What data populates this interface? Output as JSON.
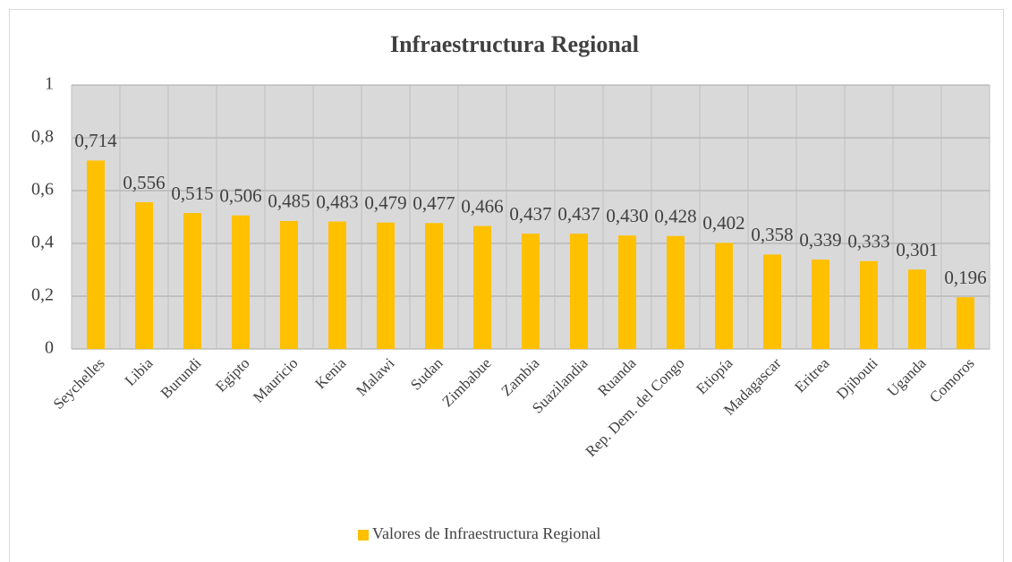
{
  "chart_data": {
    "type": "bar",
    "title": "Infraestructura Regional",
    "categories": [
      "Seychelles",
      "Libia",
      "Burundi",
      "Egipto",
      "Mauricio",
      "Kenia",
      "Malawi",
      "Sudan",
      "Zimbabue",
      "Zambia",
      "Suazilandia",
      "Ruanda",
      "Rep. Dem. del Congo",
      "Etiopía",
      "Madagascar",
      "Eritrea",
      "Djibouti",
      "Uganda",
      "Comoros"
    ],
    "series": [
      {
        "name": "Valores de Infraestructura Regional",
        "color": "#ffc000",
        "values": [
          0.714,
          0.556,
          0.515,
          0.506,
          0.485,
          0.483,
          0.479,
          0.477,
          0.466,
          0.437,
          0.437,
          0.43,
          0.428,
          0.402,
          0.358,
          0.339,
          0.333,
          0.301,
          0.196
        ],
        "value_labels": [
          "0,714",
          "0,556",
          "0,515",
          "0,506",
          "0,485",
          "0,483",
          "0,479",
          "0,477",
          "0,466",
          "0,437",
          "0,437",
          "0,430",
          "0,428",
          "0,402",
          "0,358",
          "0,339",
          "0,333",
          "0,301",
          "0,196"
        ]
      }
    ],
    "ylim": [
      0,
      1
    ],
    "yticks": [
      0,
      {
        "value": 0.2,
        "label": "0,2"
      },
      {
        "value": 0.4,
        "label": "0,4"
      },
      {
        "value": 0.6,
        "label": "0,6"
      },
      {
        "value": 0.8,
        "label": "0,8"
      },
      1
    ],
    "grid": true,
    "legend": "bottom"
  }
}
